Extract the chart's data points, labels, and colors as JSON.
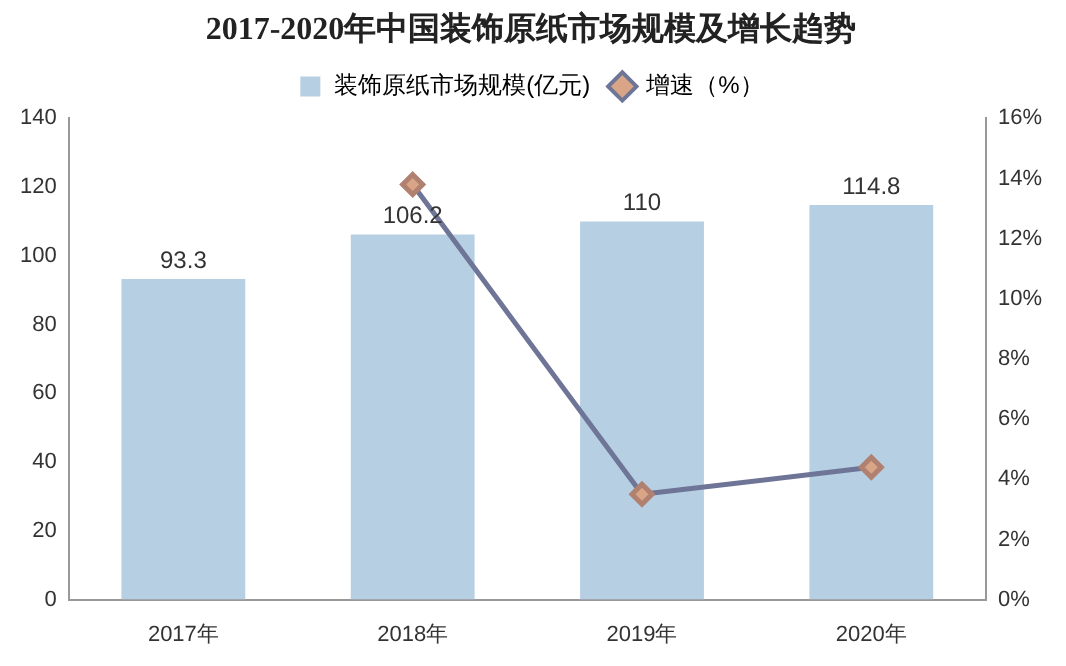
{
  "chart_data": {
    "type": "bar",
    "title": "2017-2020年中国装饰原纸市场规模及增长趋势",
    "categories": [
      "2017年",
      "2018年",
      "2019年",
      "2020年"
    ],
    "series": [
      {
        "name": "装饰原纸市场规模(亿元)",
        "color": "#b7cfe2",
        "values": [
          93.3,
          106.2,
          110,
          114.8
        ],
        "value_labels": [
          "93.3",
          "106.2",
          "110",
          "114.8"
        ]
      },
      {
        "name": "增速（%）",
        "type": "line",
        "axis": "y2",
        "color": "#6e7596",
        "values": [
          null,
          13.8,
          3.5,
          4.4
        ]
      }
    ],
    "ylim": [
      0,
      140
    ],
    "yticks": [
      0,
      20,
      40,
      60,
      80,
      100,
      120,
      140
    ],
    "y2lim": [
      0,
      16
    ],
    "y2ticks": [
      {
        "value": 0,
        "label": "0%"
      },
      {
        "value": 2,
        "label": "2%"
      },
      {
        "value": 4,
        "label": "4%"
      },
      {
        "value": 6,
        "label": "6%"
      },
      {
        "value": 8,
        "label": "8%"
      },
      {
        "value": 10,
        "label": "10%"
      },
      {
        "value": 12,
        "label": "12%"
      },
      {
        "value": 14,
        "label": "14%"
      },
      {
        "value": 16,
        "label": "16%"
      }
    ],
    "legend": "top",
    "grid": false,
    "marker": "diamond"
  }
}
